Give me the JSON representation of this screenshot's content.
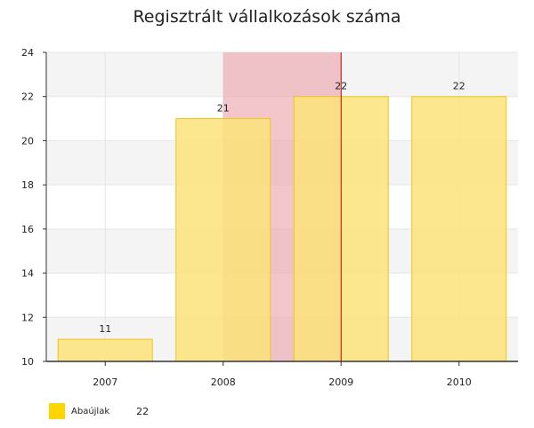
{
  "chart_data": {
    "type": "bar",
    "title": "Regisztrált vállalkozások száma",
    "categories": [
      "2007",
      "2008",
      "2009",
      "2010"
    ],
    "series": [
      {
        "name": "Abaújlak",
        "values": [
          11,
          21,
          22,
          22
        ]
      }
    ],
    "data_labels": [
      "11",
      "21",
      "22",
      "22"
    ],
    "ylim": [
      10,
      24
    ],
    "y_ticks": [
      "10",
      "12",
      "14",
      "16",
      "18",
      "20",
      "22",
      "24"
    ],
    "colors": {
      "bar_fill": "#FBE37A",
      "bar_stroke": "#F0C419",
      "band_fill": "#E9A0A8",
      "crosshair": "#CC0000",
      "legend": "#FFD500"
    },
    "highlight": {
      "band_from": "2008",
      "band_to": "2009",
      "crosshair_at": "2009"
    },
    "legend": {
      "position": "bottom-left",
      "label": "Abaújlak",
      "value": "22"
    },
    "grid": true
  }
}
